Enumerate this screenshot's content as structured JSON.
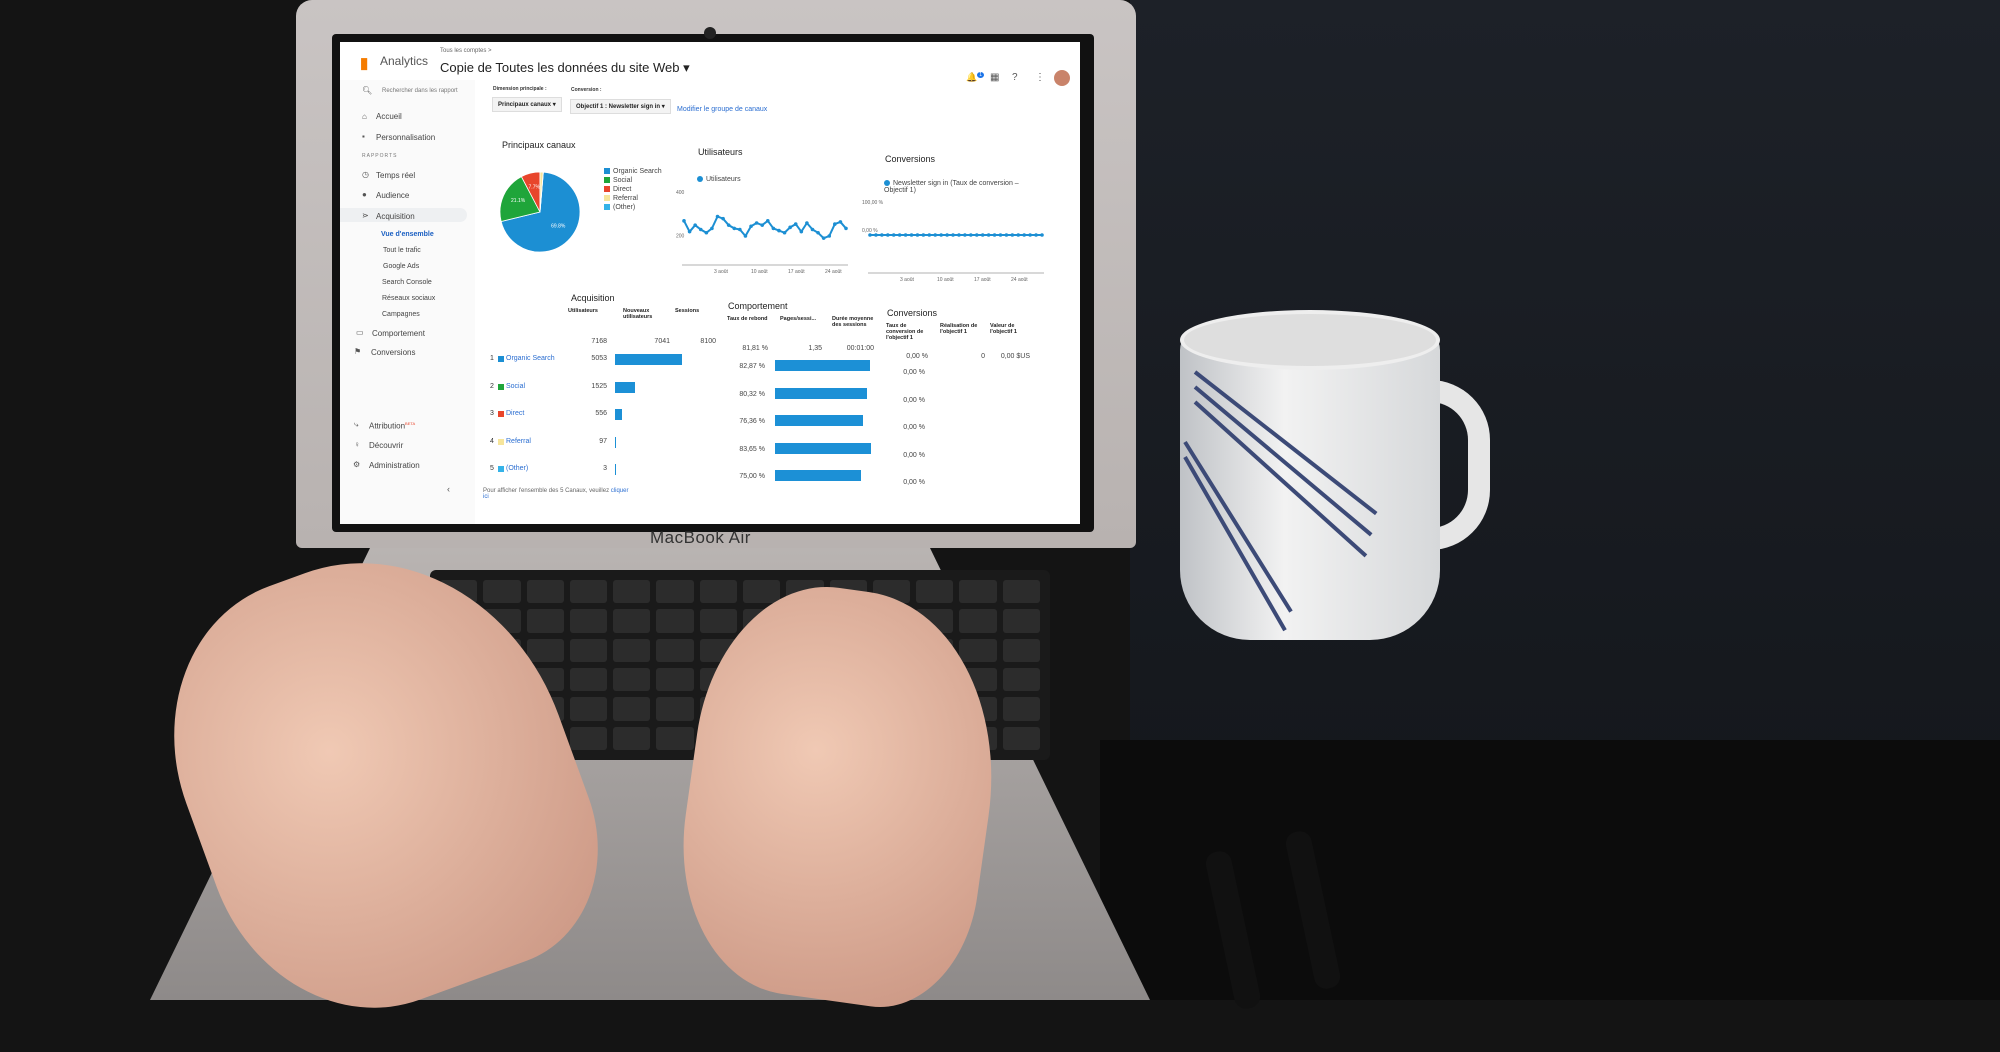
{
  "laptop_brand": "MacBook Air",
  "app": {
    "name": "Analytics",
    "breadcrumb": "Tous les comptes >",
    "view_title": "Copie de Toutes les données du site Web",
    "notification_count": "1"
  },
  "sidebar": {
    "search_placeholder": "Rechercher dans les rapport",
    "home": "Accueil",
    "custom": "Personnalisation",
    "section": "RAPPORTS",
    "items": [
      {
        "label": "Temps réel",
        "icon": "clock-icon"
      },
      {
        "label": "Audience",
        "icon": "person-icon"
      },
      {
        "label": "Acquisition",
        "icon": "acquisition-icon"
      }
    ],
    "sub_items": [
      "Vue d'ensemble",
      "Tout le trafic",
      "Google Ads",
      "Search Console",
      "Réseaux sociaux",
      "Campagnes"
    ],
    "after": [
      {
        "label": "Comportement",
        "icon": "behavior-icon"
      },
      {
        "label": "Conversions",
        "icon": "flag-icon"
      }
    ],
    "bottom": [
      {
        "label": "Attribution",
        "badge": "BETA",
        "icon": "attribution-icon"
      },
      {
        "label": "Découvrir",
        "icon": "lightbulb-icon"
      },
      {
        "label": "Administration",
        "icon": "gear-icon"
      }
    ]
  },
  "filters": {
    "dimension_label": "Dimension principale :",
    "dimension_value": "Principaux canaux",
    "conversion_label": "Conversion :",
    "conversion_value": "Objectif 1 : Newsletter sign in",
    "modify_link": "Modifier le groupe de canaux"
  },
  "colors": {
    "organic": "#1c8fd3",
    "social": "#1fa53a",
    "direct": "#e8452c",
    "referral": "#f6e59b",
    "other": "#35b3e8"
  },
  "chart_data": [
    {
      "type": "pie",
      "title": "Principaux canaux",
      "categories": [
        "Organic Search",
        "Social",
        "Direct",
        "Referral",
        "(Other)"
      ],
      "values": [
        69.8,
        21.1,
        7.7,
        1.3,
        0.04
      ],
      "labels": [
        "69.8%",
        "21.1%",
        "7.7%"
      ],
      "legend": "right"
    },
    {
      "type": "line",
      "title": "Utilisateurs",
      "series": [
        {
          "name": "Utilisateurs",
          "values": [
            290,
            240,
            270,
            250,
            235,
            255,
            310,
            300,
            270,
            255,
            250,
            220,
            265,
            280,
            270,
            290,
            255,
            245,
            235,
            260,
            275,
            240,
            280,
            250,
            235,
            210,
            220,
            275,
            285,
            255
          ]
        }
      ],
      "yticks": [
        "400",
        "200"
      ],
      "xticks": [
        "3 août",
        "10 août",
        "17 août",
        "24 août"
      ],
      "ylim": [
        100,
        400
      ]
    },
    {
      "type": "line",
      "title": "Conversions",
      "series": [
        {
          "name": "Newsletter sign in (Taux de conversion – Objectif 1)",
          "values": [
            0,
            0,
            0,
            0,
            0,
            0,
            0,
            0,
            0,
            0,
            0,
            0,
            0,
            0,
            0,
            0,
            0,
            0,
            0,
            0,
            0,
            0,
            0,
            0,
            0,
            0,
            0,
            0,
            0,
            0
          ]
        }
      ],
      "yticks": [
        "100,00 %",
        "0,00 %"
      ],
      "xticks": [
        "3 août",
        "10 août",
        "17 août",
        "24 août"
      ],
      "ylim": [
        0,
        100
      ]
    }
  ],
  "table": {
    "acq_title": "Acquisition",
    "beh_title": "Comportement",
    "conv_title": "Conversions",
    "headers": [
      "Utilisateurs",
      "Nouveaux utilisateurs",
      "Sessions",
      "Taux de rebond",
      "Pages/sessi...",
      "Durée moyenne des sessions",
      "Taux de conversion de l'objectif 1",
      "Réalisation de l'objectif 1",
      "Valeur de l'objectif 1"
    ],
    "totals": [
      "7168",
      "7041",
      "8100",
      "81,81 %",
      "1,35",
      "00:01:00",
      "0,00 %",
      "0",
      "0,00 $US"
    ],
    "rows": [
      {
        "rank": "1",
        "channel": "Organic Search",
        "users": 5053,
        "users_label": "5053",
        "bounce": 82.87,
        "bounce_label": "82,87 %",
        "conv": "0,00 %"
      },
      {
        "rank": "2",
        "channel": "Social",
        "users": 1525,
        "users_label": "1525",
        "bounce": 80.32,
        "bounce_label": "80,32 %",
        "conv": "0,00 %"
      },
      {
        "rank": "3",
        "channel": "Direct",
        "users": 556,
        "users_label": "556",
        "bounce": 76.36,
        "bounce_label": "76,36 %",
        "conv": "0,00 %"
      },
      {
        "rank": "4",
        "channel": "Referral",
        "users": 97,
        "users_label": "97",
        "bounce": 83.65,
        "bounce_label": "83,65 %",
        "conv": "0,00 %"
      },
      {
        "rank": "5",
        "channel": "(Other)",
        "users": 3,
        "users_label": "3",
        "bounce": 75.0,
        "bounce_label": "75,00 %",
        "conv": "0,00 %"
      }
    ],
    "footer": "Pour afficher l'ensemble des 5 Canaux, veuillez",
    "footer_link": "cliquer ici"
  }
}
